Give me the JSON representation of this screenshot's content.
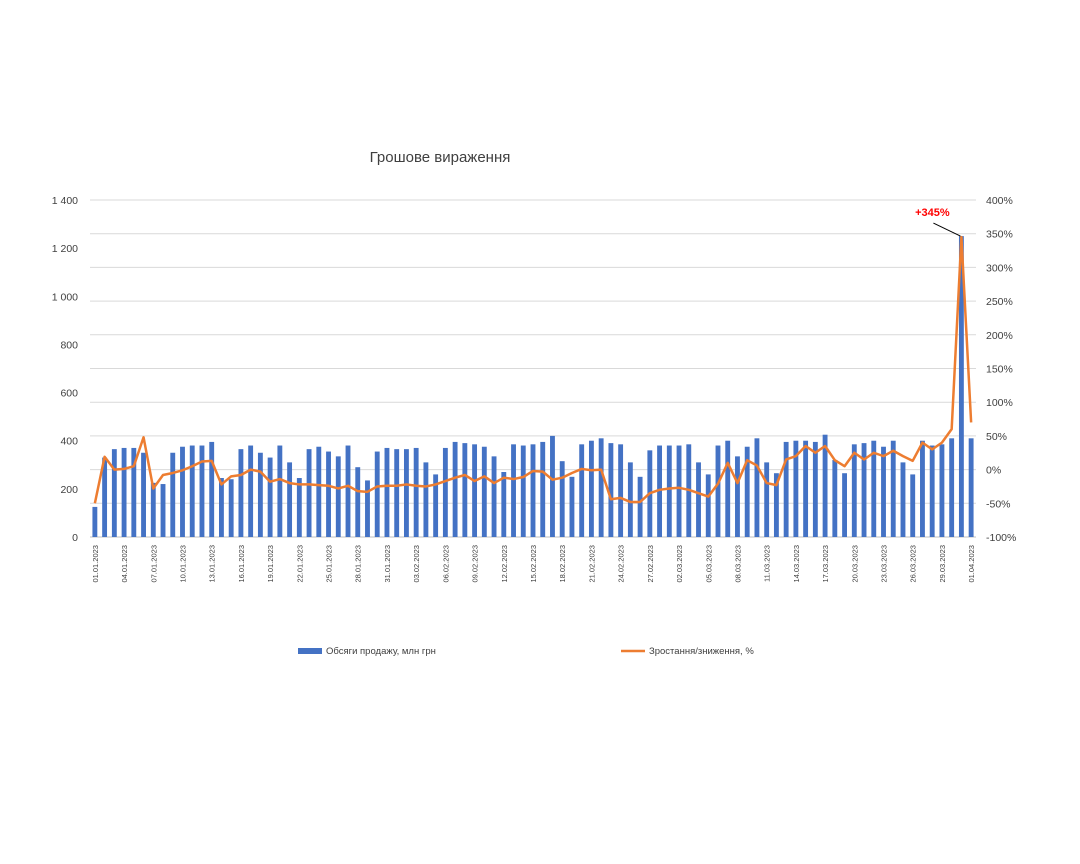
{
  "chart_data": {
    "type": "bar",
    "title": "Грошове вираження",
    "x": [
      "01.01.2023",
      "02.01.2023",
      "03.01.2023",
      "04.01.2023",
      "05.01.2023",
      "06.01.2023",
      "07.01.2023",
      "08.01.2023",
      "09.01.2023",
      "10.01.2023",
      "11.01.2023",
      "12.01.2023",
      "13.01.2023",
      "14.01.2023",
      "15.01.2023",
      "16.01.2023",
      "17.01.2023",
      "18.01.2023",
      "19.01.2023",
      "20.01.2023",
      "21.01.2023",
      "22.01.2023",
      "23.01.2023",
      "24.01.2023",
      "25.01.2023",
      "26.01.2023",
      "27.01.2023",
      "28.01.2023",
      "29.01.2023",
      "30.01.2023",
      "31.01.2023",
      "01.02.2023",
      "02.02.2023",
      "03.02.2023",
      "04.02.2023",
      "05.02.2023",
      "06.02.2023",
      "07.02.2023",
      "08.02.2023",
      "09.02.2023",
      "10.02.2023",
      "11.02.2023",
      "12.02.2023",
      "13.02.2023",
      "14.02.2023",
      "15.02.2023",
      "16.02.2023",
      "17.02.2023",
      "18.02.2023",
      "19.02.2023",
      "20.02.2023",
      "21.02.2023",
      "22.02.2023",
      "23.02.2023",
      "24.02.2023",
      "25.02.2023",
      "26.02.2023",
      "27.02.2023",
      "28.02.2023",
      "01.03.2023",
      "02.03.2023",
      "03.03.2023",
      "04.03.2023",
      "05.03.2023",
      "06.03.2023",
      "07.03.2023",
      "08.03.2023",
      "09.03.2023",
      "10.03.2023",
      "11.03.2023",
      "12.03.2023",
      "13.03.2023",
      "14.03.2023",
      "15.03.2023",
      "16.03.2023",
      "17.03.2023",
      "18.03.2023",
      "19.03.2023",
      "20.03.2023",
      "21.03.2023",
      "22.03.2023",
      "23.03.2023",
      "24.03.2023",
      "25.03.2023",
      "26.03.2023",
      "27.03.2023",
      "28.03.2023",
      "29.03.2023",
      "30.03.2023",
      "31.03.2023",
      "01.04.2023"
    ],
    "x_tick_labels": [
      "01.01.2023",
      "04.01.2023",
      "07.01.2023",
      "10.01.2023",
      "13.01.2023",
      "16.01.2023",
      "19.01.2023",
      "22.01.2023",
      "25.01.2023",
      "28.01.2023",
      "31.01.2023",
      "03.02.2023",
      "06.02.2023",
      "09.02.2023",
      "12.02.2023",
      "15.02.2023",
      "18.02.2023",
      "21.02.2023",
      "24.02.2023",
      "27.02.2023",
      "02.03.2023",
      "05.03.2023",
      "08.03.2023",
      "11.03.2023",
      "14.03.2023",
      "17.03.2023",
      "20.03.2023",
      "23.03.2023",
      "26.03.2023",
      "29.03.2023",
      "01.04.2023"
    ],
    "y_ticks": [
      "0",
      "200",
      "400",
      "600",
      "800",
      "1 000",
      "1 200",
      "1 400"
    ],
    "y2_ticks": [
      "-100%",
      "-50%",
      "0%",
      "50%",
      "100%",
      "150%",
      "200%",
      "250%",
      "300%",
      "350%",
      "400%"
    ],
    "ylim": [
      0,
      1400
    ],
    "y2lim": [
      -100,
      400
    ],
    "grid": true,
    "legend_position": "bottom",
    "series": [
      {
        "name": "Обсяги продажу, млн грн",
        "kind": "bar",
        "axis": "left",
        "color": "#4472C4",
        "values": [
          125,
          330,
          365,
          370,
          370,
          350,
          225,
          220,
          350,
          375,
          380,
          380,
          395,
          245,
          240,
          365,
          380,
          350,
          330,
          380,
          310,
          245,
          365,
          375,
          355,
          335,
          380,
          290,
          235,
          355,
          370,
          365,
          365,
          370,
          310,
          260,
          370,
          395,
          390,
          385,
          375,
          335,
          270,
          385,
          380,
          385,
          395,
          420,
          315,
          250,
          385,
          400,
          410,
          390,
          385,
          310,
          250,
          360,
          380,
          380,
          380,
          385,
          310,
          260,
          380,
          400,
          335,
          375,
          410,
          310,
          265,
          395,
          400,
          400,
          395,
          425,
          320,
          265,
          385,
          390,
          400,
          375,
          400,
          310,
          260,
          400,
          380,
          385,
          410,
          1250,
          410
        ]
      },
      {
        "name": "Зростання/зниження, %",
        "kind": "line",
        "axis": "right",
        "color": "#ED7D31",
        "values": [
          -50,
          19,
          0,
          1,
          5,
          48,
          -28,
          -8,
          -5,
          -1,
          5,
          12,
          13,
          -22,
          -10,
          -8,
          0,
          -3,
          -18,
          -14,
          -20,
          -22,
          -22,
          -23,
          -24,
          -28,
          -24,
          -32,
          -33,
          -25,
          -24,
          -24,
          -22,
          -24,
          -25,
          -22,
          -17,
          -12,
          -8,
          -17,
          -10,
          -20,
          -12,
          -14,
          -11,
          -2,
          -3,
          -15,
          -12,
          -5,
          1,
          -1,
          0,
          -44,
          -42,
          -48,
          -48,
          -35,
          -30,
          -28,
          -27,
          -30,
          -35,
          -40,
          -21,
          10,
          -20,
          14,
          6,
          -20,
          -23,
          15,
          20,
          35,
          25,
          35,
          14,
          5,
          25,
          15,
          25,
          20,
          28,
          20,
          13,
          40,
          30,
          40,
          60,
          345,
          70
        ]
      }
    ],
    "annotations": [
      {
        "text": "+345%",
        "color": "#FF0000"
      }
    ]
  }
}
